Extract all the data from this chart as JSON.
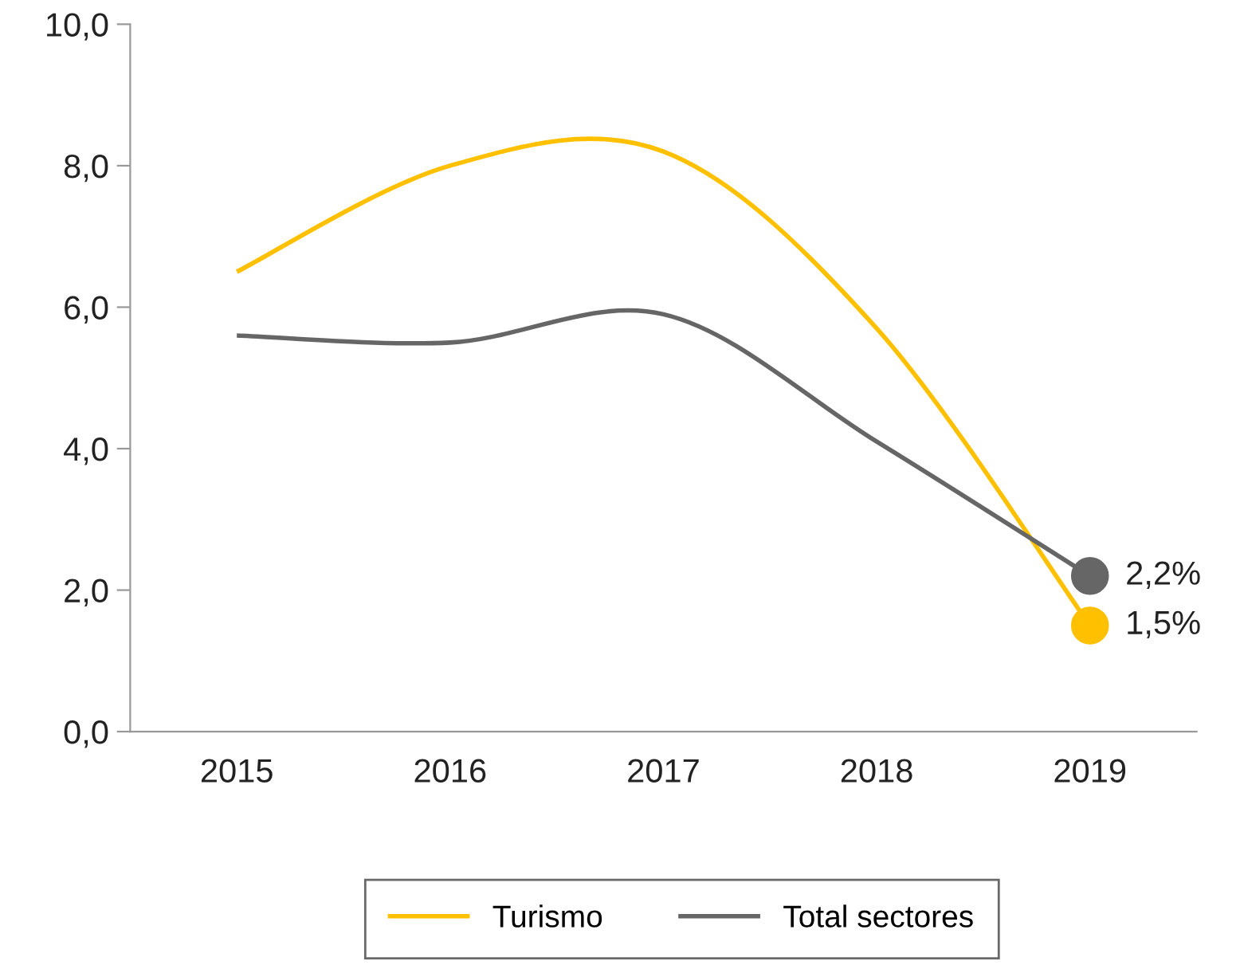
{
  "chart_data": {
    "type": "line",
    "categories": [
      "2015",
      "2016",
      "2017",
      "2018",
      "2019"
    ],
    "series": [
      {
        "name": "Turismo",
        "color": "#ffc000",
        "values": [
          6.5,
          8.0,
          8.2,
          5.7,
          1.5
        ],
        "value_labels": [
          null,
          null,
          null,
          null,
          "1,5%"
        ]
      },
      {
        "name": "Total sectores",
        "color": "#666666",
        "values": [
          5.6,
          5.5,
          5.9,
          4.1,
          2.2
        ],
        "value_labels": [
          null,
          null,
          null,
          null,
          "2,2%"
        ]
      }
    ],
    "ylim": [
      0,
      10
    ],
    "yticks": [
      {
        "value": 0,
        "label": "0,0"
      },
      {
        "value": 2,
        "label": "2,0"
      },
      {
        "value": 4,
        "label": "4,0"
      },
      {
        "value": 6,
        "label": "6,0"
      },
      {
        "value": 8,
        "label": "8,0"
      },
      {
        "value": 10,
        "label": "10,0"
      }
    ],
    "grid": false,
    "legend": "bottom",
    "marker": "none",
    "line_style": "solid"
  }
}
